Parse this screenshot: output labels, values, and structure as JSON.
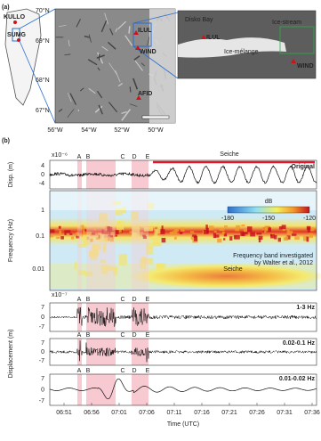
{
  "panel_a": {
    "label": "(a)",
    "overview_stations": [
      "KULLO",
      "SUMG"
    ],
    "lat_labels": [
      "70°N",
      "69°N",
      "68°N",
      "67°N"
    ],
    "lon_labels": [
      "56°W",
      "54°W",
      "52°W",
      "50°W"
    ],
    "map_stations": [
      "ILUL",
      "WIND",
      "AFID"
    ],
    "inset_labels": [
      "Disko Bay",
      "ILUL",
      "Ice-stream",
      "Ice-mélange",
      "WIND"
    ]
  },
  "panel_b": {
    "label": "(b)",
    "events": [
      "A",
      "B",
      "C",
      "D",
      "E"
    ],
    "disp": {
      "scale": "x10⁻⁶",
      "ylabel": "Disp. (m)",
      "yticks": [
        "4",
        "0",
        "-4"
      ],
      "annotation": "Seiche",
      "trace": "Original"
    },
    "spectrogram": {
      "ylabel": "Frequency (Hz)",
      "yticks": [
        "1",
        "0.1",
        "0.01"
      ],
      "colorbar_title": "dB",
      "colorbar_ticks": [
        "-180",
        "-150",
        "-120"
      ],
      "band_note": [
        "Frequency band investigated",
        "by Walter et al., 2012"
      ],
      "annotation": "Seiche"
    },
    "filtered": {
      "scale": "x10⁻⁷",
      "ylabel": "Displacement (m)",
      "yticks": [
        "7",
        "0",
        "-7"
      ],
      "bands": [
        "1-3 Hz",
        "0.02-0.1 Hz",
        "0.01-0.02 Hz"
      ]
    },
    "time_labels": [
      "06:51",
      "06:56",
      "07:01",
      "07:06",
      "07:11",
      "07:16",
      "07:21",
      "07:26",
      "07:31",
      "07:36"
    ],
    "xlabel": "Time (UTC)"
  }
}
